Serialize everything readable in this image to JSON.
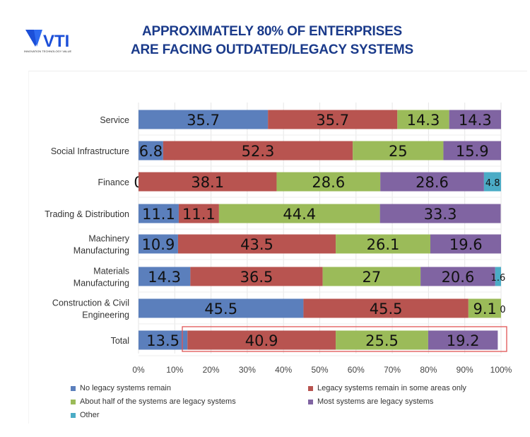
{
  "header": {
    "title_line1": "APPROXIMATELY 80% OF ENTERPRISES",
    "title_line2": "ARE FACING OUTDATED/LEGACY SYSTEMS",
    "logo_text": "VTI",
    "logo_tagline": "INNOVATION TECHNOLOGY VALUE"
  },
  "chart_data": {
    "type": "bar",
    "orientation": "horizontal",
    "stacked": "percent",
    "categories": [
      "Service",
      "Social Infrastructure",
      "Finance",
      "Trading & Distribution",
      "Machinery Manufacturing",
      "Materials Manufacturing",
      "Construction & Civil Engineering",
      "Total"
    ],
    "category_lines": [
      [
        "Service"
      ],
      [
        "Social Infrastructure"
      ],
      [
        "Finance"
      ],
      [
        "Trading & Distribution"
      ],
      [
        "Machinery",
        "Manufacturing"
      ],
      [
        "Materials",
        "Manufacturing"
      ],
      [
        "Construction & Civil",
        "Engineering"
      ],
      [
        "Total"
      ]
    ],
    "series": [
      {
        "name": "No legacy systems remain",
        "color": "#5b7fbc",
        "values": [
          35.7,
          6.8,
          0,
          11.1,
          10.9,
          14.3,
          45.5,
          13.5
        ]
      },
      {
        "name": "Legacy systems remain in some areas only",
        "color": "#b85450",
        "values": [
          35.7,
          52.3,
          38.1,
          11.1,
          43.5,
          36.5,
          45.5,
          40.9
        ]
      },
      {
        "name": "About half of the systems are legacy systems",
        "color": "#9bbb59",
        "values": [
          14.3,
          25,
          28.6,
          44.4,
          26.1,
          27,
          9.1,
          25.5
        ]
      },
      {
        "name": "Most systems are legacy systems",
        "color": "#8064a2",
        "values": [
          14.3,
          15.9,
          28.6,
          33.3,
          19.6,
          20.6,
          0,
          19.2
        ]
      },
      {
        "name": "Other",
        "color": "#4bacc6",
        "values": [
          null,
          null,
          4.8,
          null,
          null,
          1.6,
          null,
          null
        ]
      }
    ],
    "xlim": [
      0,
      100
    ],
    "x_ticks": [
      "0%",
      "10%",
      "20%",
      "30%",
      "40%",
      "50%",
      "60%",
      "70%",
      "80%",
      "90%",
      "100%"
    ],
    "grid": true,
    "legend": "bottom",
    "highlight": {
      "category": "Total",
      "series_range": "Legacy systems remain in some areas only to Most systems are legacy systems",
      "color": "#e05555"
    }
  }
}
